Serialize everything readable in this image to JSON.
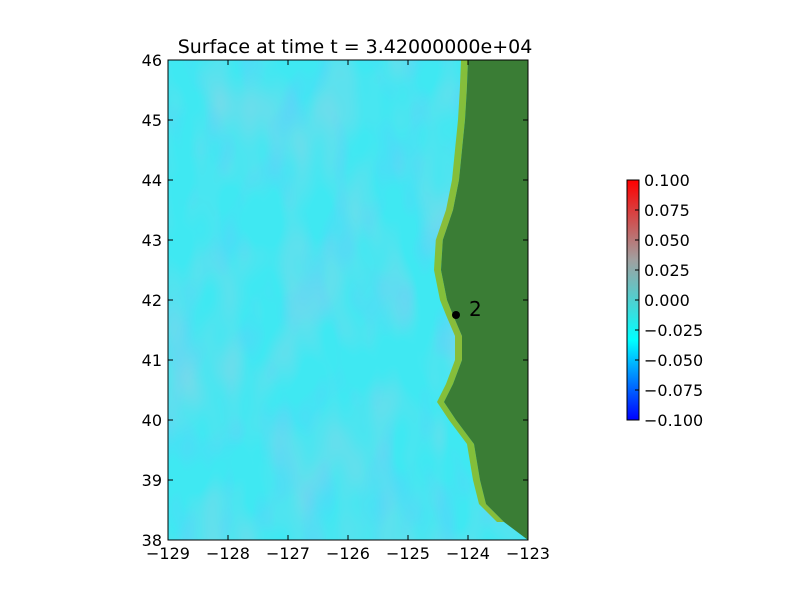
{
  "chart_data": {
    "type": "heatmap",
    "title": "Surface at time t = 3.42000000e+04",
    "xlabel": "",
    "ylabel": "",
    "xlim": [
      -129,
      -123
    ],
    "ylim": [
      38,
      46
    ],
    "x_ticks": [
      "−129",
      "−128",
      "−127",
      "−126",
      "−125",
      "−124",
      "−123"
    ],
    "y_ticks": [
      "38",
      "39",
      "40",
      "41",
      "42",
      "43",
      "44",
      "45",
      "46"
    ],
    "colorbar": {
      "range": [
        -0.1,
        0.1
      ],
      "ticks": [
        "0.100",
        "0.075",
        "0.050",
        "0.025",
        "0.000",
        "−0.025",
        "−0.050",
        "−0.075",
        "−0.100"
      ],
      "colors": [
        "#0000ff",
        "#00ffff",
        "#a0a0a0",
        "#ff0000"
      ]
    },
    "gauges": [
      {
        "label": "2",
        "lon": -124.2,
        "lat": 41.75
      }
    ],
    "coastline": [
      [
        -123.0,
        46.0
      ],
      [
        -124.0,
        46.0
      ],
      [
        -124.02,
        45.5
      ],
      [
        -124.05,
        45.0
      ],
      [
        -124.1,
        44.5
      ],
      [
        -124.15,
        44.0
      ],
      [
        -124.25,
        43.5
      ],
      [
        -124.42,
        43.0
      ],
      [
        -124.45,
        42.5
      ],
      [
        -124.35,
        42.0
      ],
      [
        -124.25,
        41.75
      ],
      [
        -124.1,
        41.4
      ],
      [
        -124.1,
        41.0
      ],
      [
        -124.25,
        40.6
      ],
      [
        -124.4,
        40.3
      ],
      [
        -124.2,
        40.0
      ],
      [
        -123.9,
        39.6
      ],
      [
        -123.8,
        39.0
      ],
      [
        -123.7,
        38.6
      ],
      [
        -123.4,
        38.3
      ],
      [
        -123.0,
        38.0
      ]
    ],
    "colors": {
      "ocean": "#3fe8f2",
      "land": "#3a7d35",
      "nearshore": "#8fb71a"
    },
    "grid": false
  }
}
